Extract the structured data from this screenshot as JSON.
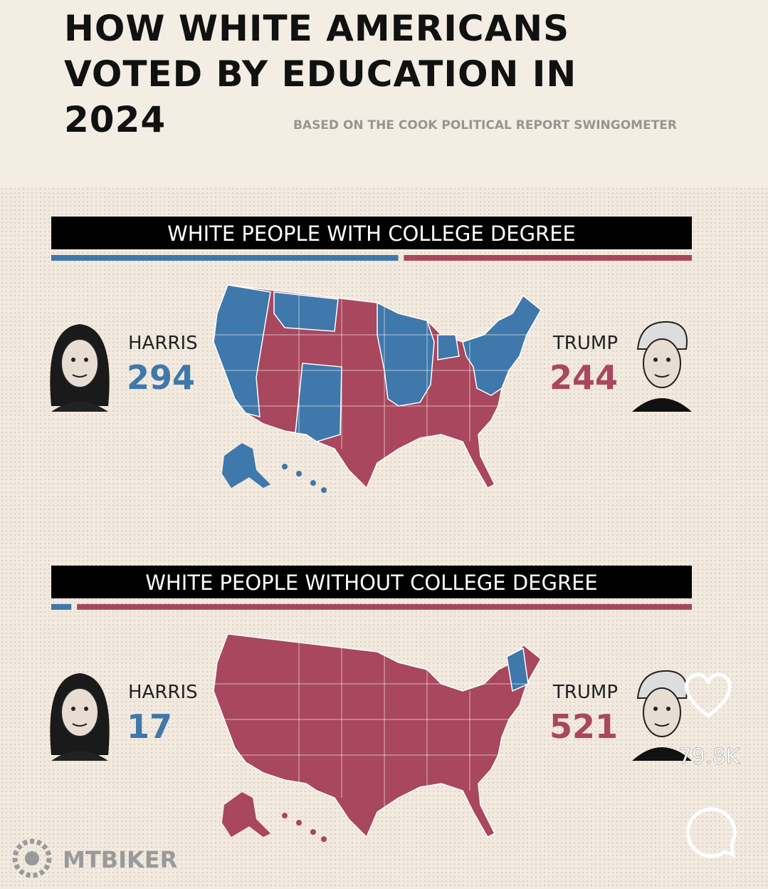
{
  "header": {
    "title": "HOW WHITE AMERICANS VOTED BY EDUCATION IN 2024",
    "subtitle": "BASED ON THE COOK POLITICAL REPORT SWINGOMETER"
  },
  "panels": [
    {
      "heading": "WHITE PEOPLE WITH COLLEGE DEGREE",
      "harris": {
        "name": "HARRIS",
        "votes": 294
      },
      "trump": {
        "name": "TRUMP",
        "votes": 244
      }
    },
    {
      "heading": "WHITE PEOPLE WITHOUT COLLEGE DEGREE",
      "harris": {
        "name": "HARRIS",
        "votes": 17
      },
      "trump": {
        "name": "TRUMP",
        "votes": 521
      }
    }
  ],
  "overlay": {
    "likes": "79.8K",
    "watermark": "MTBIKER"
  }
}
